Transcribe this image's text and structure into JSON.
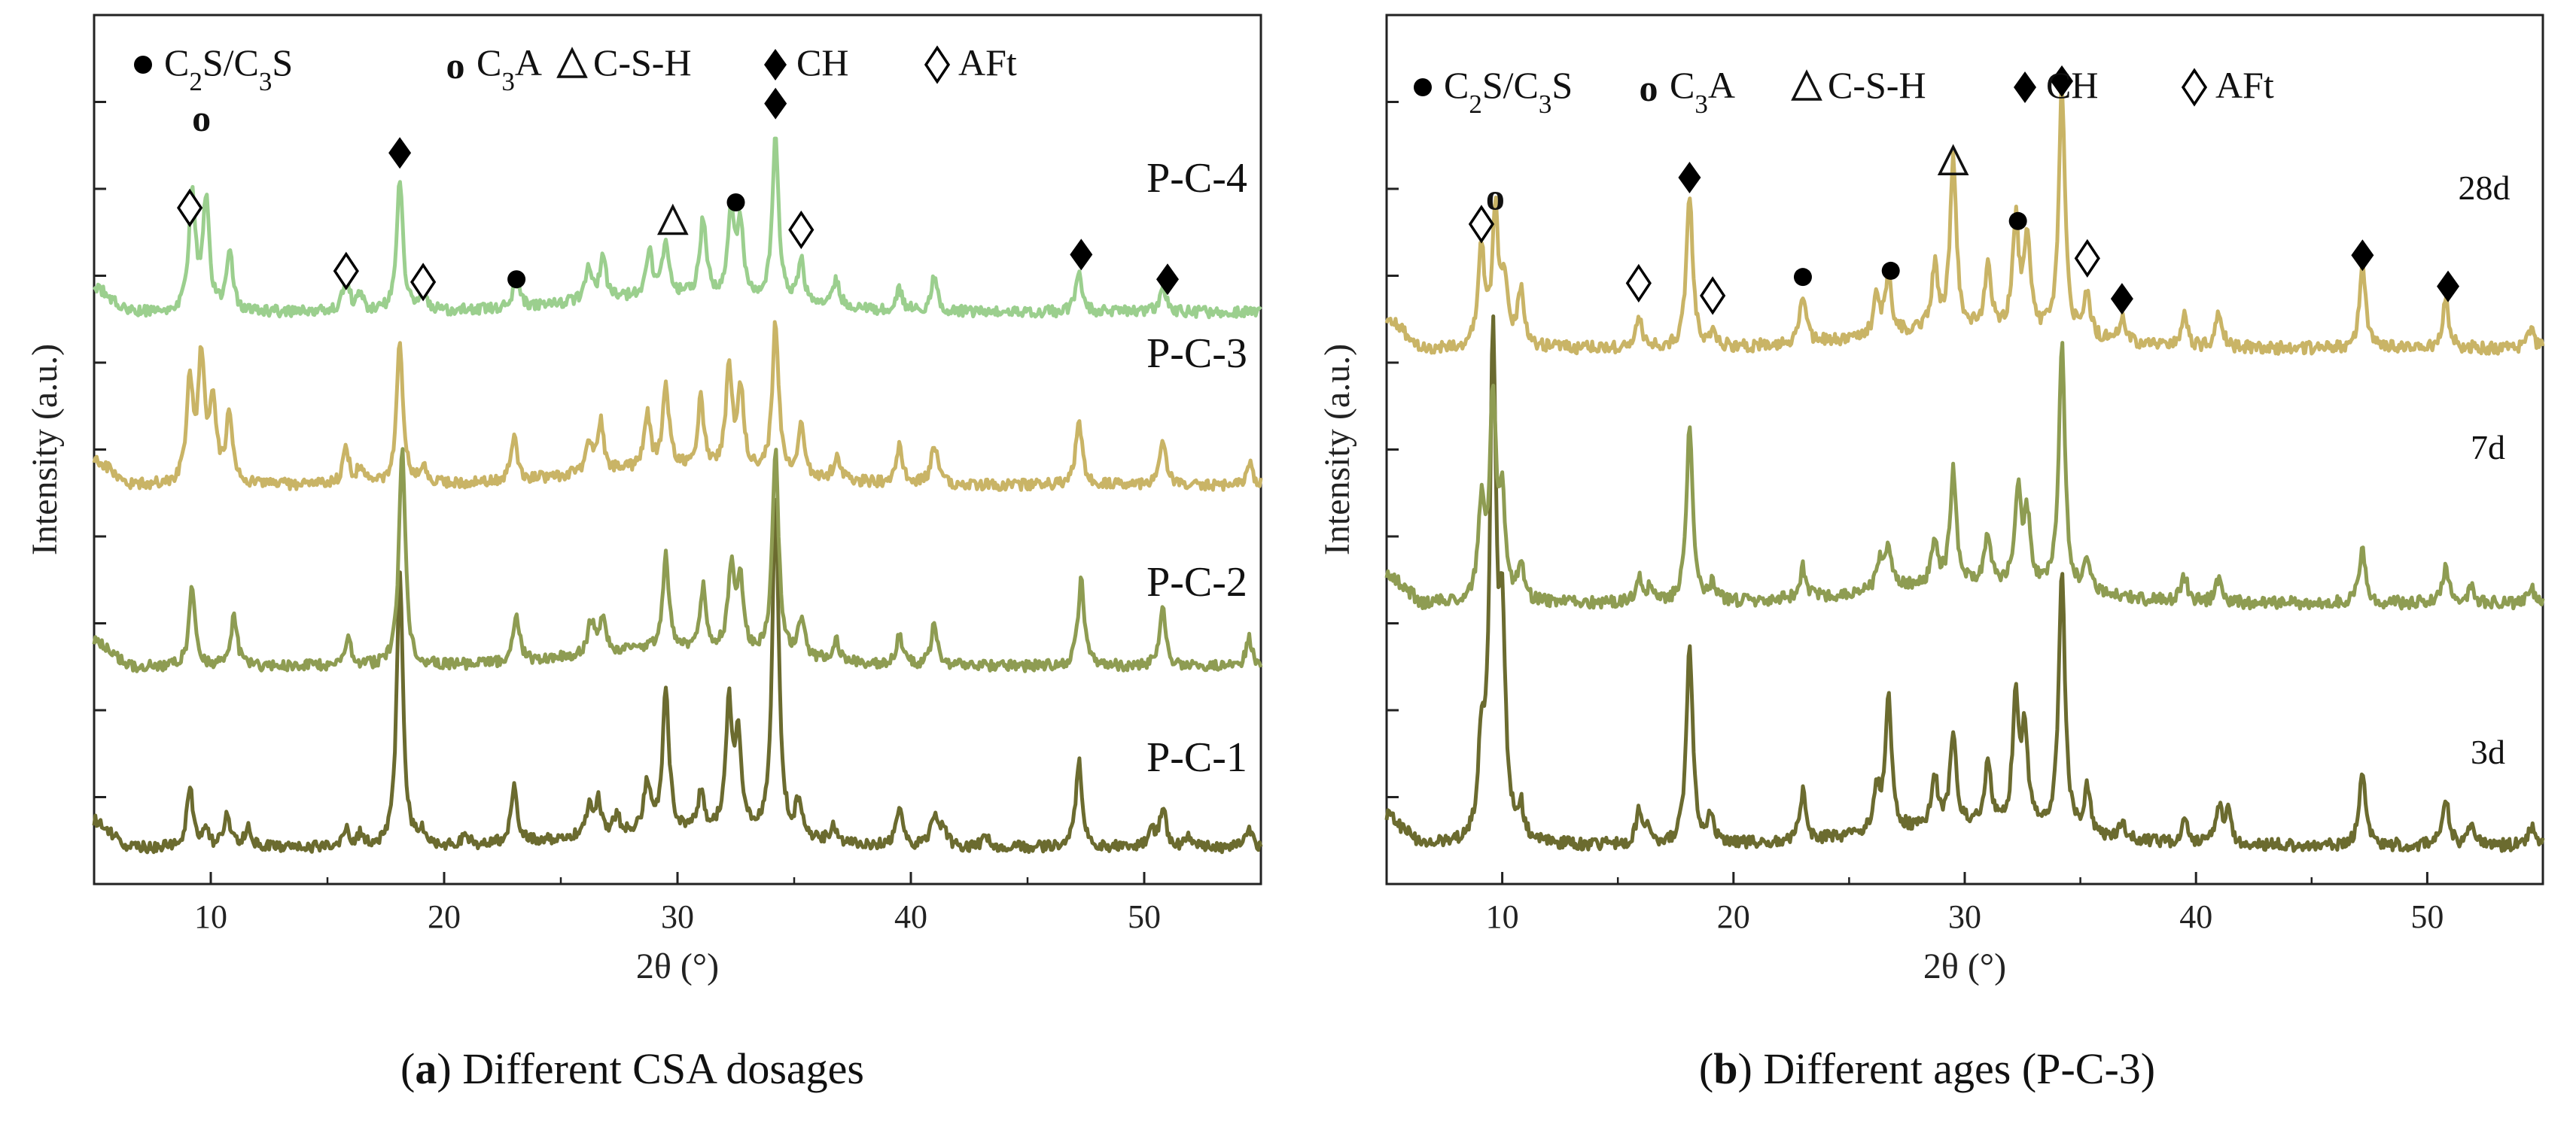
{
  "chart_data": [
    {
      "type": "line",
      "panel_letter": "a",
      "caption": "Different CSA dosages",
      "xlabel": "2θ (°)",
      "ylabel": "Intensity (a.u.)",
      "xlim": [
        5,
        55
      ],
      "xticks": [
        10,
        20,
        30,
        40,
        50
      ],
      "legend": [
        {
          "symbol": "●",
          "name": "C2S/C3S"
        },
        {
          "symbol": "o",
          "name": "C3A"
        },
        {
          "symbol": "Δ",
          "name": "C-S-H"
        },
        {
          "symbol": "◆",
          "name": "CH"
        },
        {
          "symbol": "◇",
          "name": "AFt"
        }
      ],
      "series": [
        {
          "name": "P-C-1",
          "color": "#6b6b2f",
          "offset": 0.0,
          "scale": 1.0,
          "peaks": [
            [
              9.1,
              0.22
            ],
            [
              9.8,
              0.05
            ],
            [
              10.7,
              0.12
            ],
            [
              11.6,
              0.07
            ],
            [
              15.8,
              0.07
            ],
            [
              16.4,
              0.04
            ],
            [
              18.1,
              1.0
            ],
            [
              19.0,
              0.05
            ],
            [
              20.9,
              0.04
            ],
            [
              23.0,
              0.22
            ],
            [
              26.2,
              0.1
            ],
            [
              26.6,
              0.12
            ],
            [
              27.4,
              0.06
            ],
            [
              28.7,
              0.18
            ],
            [
              29.5,
              0.52
            ],
            [
              31.0,
              0.13
            ],
            [
              32.2,
              0.45
            ],
            [
              32.6,
              0.35
            ],
            [
              34.2,
              1.25
            ],
            [
              35.2,
              0.13
            ],
            [
              36.7,
              0.06
            ],
            [
              39.5,
              0.14
            ],
            [
              41.0,
              0.11
            ],
            [
              41.4,
              0.08
            ],
            [
              43.2,
              0.04
            ],
            [
              47.2,
              0.32
            ],
            [
              50.3,
              0.06
            ],
            [
              50.8,
              0.14
            ],
            [
              51.9,
              0.04
            ],
            [
              54.5,
              0.07
            ]
          ]
        },
        {
          "name": "P-C-2",
          "color": "#8e9c52",
          "offset": 0.66,
          "scale": 1.0,
          "peaks": [
            [
              9.2,
              0.28
            ],
            [
              11.0,
              0.18
            ],
            [
              15.9,
              0.1
            ],
            [
              18.2,
              0.8
            ],
            [
              23.1,
              0.17
            ],
            [
              26.3,
              0.12
            ],
            [
              26.8,
              0.14
            ],
            [
              29.5,
              0.34
            ],
            [
              31.1,
              0.22
            ],
            [
              32.3,
              0.3
            ],
            [
              32.7,
              0.25
            ],
            [
              34.2,
              0.75
            ],
            [
              35.3,
              0.14
            ],
            [
              36.8,
              0.08
            ],
            [
              39.5,
              0.11
            ],
            [
              41.0,
              0.15
            ],
            [
              47.3,
              0.32
            ],
            [
              50.8,
              0.2
            ],
            [
              54.5,
              0.1
            ]
          ]
        },
        {
          "name": "P-C-3",
          "color": "#c9b466",
          "offset": 1.32,
          "scale": 1.0,
          "peaks": [
            [
              9.1,
              0.38
            ],
            [
              9.6,
              0.45
            ],
            [
              10.1,
              0.3
            ],
            [
              10.8,
              0.26
            ],
            [
              15.8,
              0.13
            ],
            [
              16.4,
              0.06
            ],
            [
              18.1,
              0.52
            ],
            [
              19.1,
              0.07
            ],
            [
              23.0,
              0.16
            ],
            [
              26.2,
              0.12
            ],
            [
              26.7,
              0.18
            ],
            [
              28.7,
              0.2
            ],
            [
              29.5,
              0.3
            ],
            [
              31.0,
              0.25
            ],
            [
              32.2,
              0.35
            ],
            [
              32.7,
              0.3
            ],
            [
              34.2,
              0.55
            ],
            [
              35.3,
              0.18
            ],
            [
              36.8,
              0.08
            ],
            [
              39.5,
              0.13
            ],
            [
              41.0,
              0.15
            ],
            [
              47.2,
              0.24
            ],
            [
              50.8,
              0.16
            ],
            [
              54.5,
              0.08
            ]
          ]
        },
        {
          "name": "P-C-4",
          "color": "#9bcf8e",
          "offset": 1.95,
          "scale": 1.0,
          "peaks": [
            [
              9.2,
              0.45
            ],
            [
              9.8,
              0.4
            ],
            [
              10.8,
              0.22
            ],
            [
              15.8,
              0.13
            ],
            [
              16.4,
              0.06
            ],
            [
              18.1,
              0.48
            ],
            [
              19.1,
              0.08
            ],
            [
              23.1,
              0.1
            ],
            [
              26.2,
              0.12
            ],
            [
              26.8,
              0.15
            ],
            [
              28.8,
              0.15
            ],
            [
              29.5,
              0.2
            ],
            [
              31.1,
              0.28
            ],
            [
              32.3,
              0.32
            ],
            [
              32.7,
              0.25
            ],
            [
              34.2,
              0.6
            ],
            [
              35.3,
              0.15
            ],
            [
              36.8,
              0.1
            ],
            [
              39.5,
              0.08
            ],
            [
              41.0,
              0.12
            ],
            [
              47.2,
              0.14
            ],
            [
              50.8,
              0.1
            ]
          ]
        }
      ],
      "series_labels": [
        {
          "series": "P-C-4",
          "text": "P-C-4"
        },
        {
          "series": "P-C-3",
          "text": "P-C-3"
        },
        {
          "series": "P-C-2",
          "text": "P-C-2"
        },
        {
          "series": "P-C-1",
          "text": "P-C-1"
        }
      ],
      "annotations": [
        {
          "symbol": "◇",
          "x": 9.1,
          "y": 2.38
        },
        {
          "symbol": "o",
          "x": 9.6,
          "y": 2.71
        },
        {
          "symbol": "◇",
          "x": 15.8,
          "y": 2.15
        },
        {
          "symbol": "◆",
          "x": 18.1,
          "y": 2.58
        },
        {
          "symbol": "◇",
          "x": 19.1,
          "y": 2.11
        },
        {
          "symbol": "●",
          "x": 23.1,
          "y": 2.12
        },
        {
          "symbol": "Δ",
          "x": 29.8,
          "y": 2.33
        },
        {
          "symbol": "●",
          "x": 32.5,
          "y": 2.4
        },
        {
          "symbol": "◆",
          "x": 34.2,
          "y": 2.76
        },
        {
          "symbol": "◇",
          "x": 35.3,
          "y": 2.3
        },
        {
          "symbol": "◆",
          "x": 47.3,
          "y": 2.21
        },
        {
          "symbol": "◆",
          "x": 51.0,
          "y": 2.12
        }
      ]
    },
    {
      "type": "line",
      "panel_letter": "b",
      "caption": "Different ages (P-C-3)",
      "xlabel": "2θ (°)",
      "ylabel": "Intensity (a.u.)",
      "xlim": [
        5,
        55
      ],
      "xticks": [
        10,
        20,
        30,
        40,
        50
      ],
      "legend": [
        {
          "symbol": "●",
          "name": "C2S/C3S"
        },
        {
          "symbol": "o",
          "name": "C3A"
        },
        {
          "symbol": "Δ",
          "name": "C-S-H"
        },
        {
          "symbol": "◆",
          "name": "CH"
        },
        {
          "symbol": "◇",
          "name": "AFt"
        }
      ],
      "series": [
        {
          "name": "3d",
          "color": "#6b6b2f",
          "offset": 0.0,
          "scale": 1.0,
          "peaks": [
            [
              9.1,
              0.28
            ],
            [
              9.6,
              1.6
            ],
            [
              10.0,
              0.65
            ],
            [
              10.8,
              0.1
            ],
            [
              15.9,
              0.1
            ],
            [
              16.3,
              0.06
            ],
            [
              18.1,
              0.65
            ],
            [
              19.0,
              0.1
            ],
            [
              23.0,
              0.16
            ],
            [
              26.2,
              0.12
            ],
            [
              26.7,
              0.45
            ],
            [
              28.7,
              0.16
            ],
            [
              29.5,
              0.3
            ],
            [
              31.0,
              0.22
            ],
            [
              32.2,
              0.4
            ],
            [
              32.6,
              0.3
            ],
            [
              34.2,
              0.85
            ],
            [
              35.3,
              0.15
            ],
            [
              36.8,
              0.06
            ],
            [
              39.5,
              0.09
            ],
            [
              41.0,
              0.12
            ],
            [
              41.4,
              0.1
            ],
            [
              47.2,
              0.24
            ],
            [
              50.8,
              0.16
            ],
            [
              51.9,
              0.06
            ],
            [
              54.5,
              0.06
            ]
          ]
        },
        {
          "name": "7d",
          "color": "#8e9c52",
          "offset": 0.78,
          "scale": 1.0,
          "peaks": [
            [
              9.1,
              0.3
            ],
            [
              9.6,
              0.65
            ],
            [
              10.0,
              0.3
            ],
            [
              10.8,
              0.12
            ],
            [
              15.9,
              0.08
            ],
            [
              16.4,
              0.05
            ],
            [
              18.1,
              0.58
            ],
            [
              19.1,
              0.06
            ],
            [
              23.0,
              0.1
            ],
            [
              26.3,
              0.09
            ],
            [
              26.7,
              0.12
            ],
            [
              28.7,
              0.15
            ],
            [
              29.5,
              0.36
            ],
            [
              31.0,
              0.15
            ],
            [
              32.3,
              0.3
            ],
            [
              32.7,
              0.22
            ],
            [
              34.2,
              0.8
            ],
            [
              35.3,
              0.1
            ],
            [
              39.5,
              0.08
            ],
            [
              41.0,
              0.08
            ],
            [
              47.2,
              0.18
            ],
            [
              50.8,
              0.12
            ],
            [
              51.9,
              0.05
            ],
            [
              54.5,
              0.05
            ]
          ]
        },
        {
          "name": "28d",
          "color": "#c9b466",
          "offset": 1.6,
          "scale": 1.0,
          "peaks": [
            [
              9.1,
              0.32
            ],
            [
              9.7,
              0.42
            ],
            [
              10.1,
              0.2
            ],
            [
              10.8,
              0.18
            ],
            [
              15.9,
              0.1
            ],
            [
              18.1,
              0.5
            ],
            [
              19.1,
              0.05
            ],
            [
              23.0,
              0.16
            ],
            [
              26.2,
              0.12
            ],
            [
              26.7,
              0.18
            ],
            [
              28.7,
              0.2
            ],
            [
              29.5,
              0.55
            ],
            [
              31.0,
              0.2
            ],
            [
              32.2,
              0.35
            ],
            [
              32.7,
              0.3
            ],
            [
              34.2,
              0.8
            ],
            [
              35.3,
              0.14
            ],
            [
              36.8,
              0.08
            ],
            [
              39.5,
              0.1
            ],
            [
              41.0,
              0.12
            ],
            [
              47.2,
              0.26
            ],
            [
              50.8,
              0.16
            ],
            [
              54.5,
              0.06
            ]
          ]
        }
      ],
      "series_labels": [
        {
          "series": "28d",
          "text": "28d"
        },
        {
          "series": "7d",
          "text": "7d"
        },
        {
          "series": "3d",
          "text": "3d"
        }
      ],
      "annotations": [
        {
          "symbol": "◇",
          "x": 9.1,
          "y": 2.05
        },
        {
          "symbol": "o",
          "x": 9.7,
          "y": 2.14
        },
        {
          "symbol": "◇",
          "x": 15.9,
          "y": 1.86
        },
        {
          "symbol": "◆",
          "x": 18.1,
          "y": 2.2
        },
        {
          "symbol": "◇",
          "x": 19.1,
          "y": 1.82
        },
        {
          "symbol": "●",
          "x": 23.0,
          "y": 1.88
        },
        {
          "symbol": "●",
          "x": 26.8,
          "y": 1.9
        },
        {
          "symbol": "Δ",
          "x": 29.5,
          "y": 2.25
        },
        {
          "symbol": "●",
          "x": 32.3,
          "y": 2.06
        },
        {
          "symbol": "◆",
          "x": 34.2,
          "y": 2.51
        },
        {
          "symbol": "◇",
          "x": 35.3,
          "y": 1.94
        },
        {
          "symbol": "◆",
          "x": 36.8,
          "y": 1.81
        },
        {
          "symbol": "◆",
          "x": 47.2,
          "y": 1.95
        },
        {
          "symbol": "◆",
          "x": 50.9,
          "y": 1.85
        }
      ]
    }
  ]
}
